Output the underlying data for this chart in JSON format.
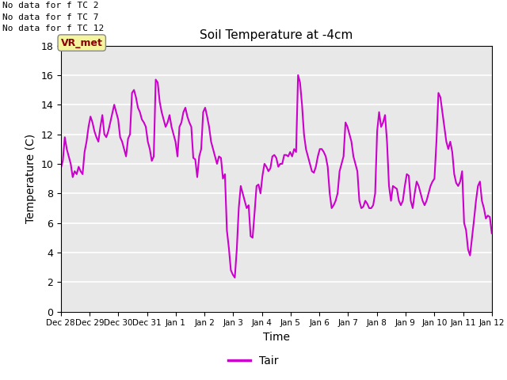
{
  "title": "Soil Temperature at -4cm",
  "xlabel": "Time",
  "ylabel": "Temperature (C)",
  "ylim": [
    0,
    18
  ],
  "line_color": "#cc00cc",
  "line_width": 1.5,
  "background_color": "#e8e8e8",
  "annotations": [
    "No data for f TC 2",
    "No data for f TC 7",
    "No data for f TC 12"
  ],
  "vr_met_label": "VR_met",
  "legend_label": "Tair",
  "tick_labels": [
    "Dec 28",
    "Dec 29",
    "Dec 30",
    "Dec 31",
    "Jan 1",
    "Jan 2",
    "Jan 3",
    "Jan 4",
    "Jan 5",
    "Jan 6",
    "Jan 7",
    "Jan 8",
    "Jan 9",
    "Jan 10",
    "Jan 11",
    "Jan 12"
  ],
  "tick_positions": [
    0,
    1,
    2,
    3,
    4,
    5,
    6,
    7,
    8,
    9,
    10,
    11,
    12,
    13,
    14,
    15
  ],
  "y_values": [
    9.7,
    10.2,
    11.8,
    11.0,
    10.5,
    10.0,
    9.1,
    9.5,
    9.3,
    9.8,
    9.5,
    9.3,
    10.8,
    11.5,
    12.5,
    13.2,
    12.8,
    12.2,
    11.8,
    11.5,
    12.5,
    13.3,
    12.0,
    11.8,
    12.2,
    12.8,
    13.4,
    14.0,
    13.5,
    13.0,
    11.8,
    11.5,
    11.0,
    10.5,
    11.7,
    12.0,
    14.8,
    15.0,
    14.5,
    13.8,
    13.5,
    13.0,
    12.8,
    12.5,
    11.5,
    11.0,
    10.2,
    10.5,
    15.7,
    15.5,
    14.2,
    13.5,
    13.0,
    12.5,
    12.8,
    13.3,
    12.5,
    12.0,
    11.5,
    10.5,
    12.5,
    12.8,
    13.5,
    13.8,
    13.2,
    12.8,
    12.5,
    10.4,
    10.3,
    9.1,
    10.5,
    11.0,
    13.5,
    13.8,
    13.2,
    12.5,
    11.5,
    11.0,
    10.5,
    10.0,
    10.5,
    10.4,
    9.0,
    9.3,
    5.5,
    4.3,
    2.8,
    2.5,
    2.3,
    4.2,
    7.0,
    8.5,
    8.0,
    7.5,
    7.0,
    7.2,
    5.1,
    5.0,
    6.7,
    8.5,
    8.6,
    8.0,
    9.2,
    10.0,
    9.8,
    9.5,
    9.7,
    10.5,
    10.6,
    10.4,
    9.8,
    10.0,
    10.0,
    10.6,
    10.6,
    10.5,
    10.8,
    10.5,
    11.0,
    10.8,
    16.0,
    15.5,
    14.0,
    12.0,
    11.0,
    10.5,
    10.0,
    9.5,
    9.4,
    9.8,
    10.5,
    11.0,
    11.0,
    10.8,
    10.5,
    9.8,
    8.0,
    7.0,
    7.2,
    7.5,
    8.0,
    9.5,
    10.0,
    10.5,
    12.8,
    12.5,
    12.0,
    11.5,
    10.5,
    10.0,
    9.5,
    7.5,
    7.0,
    7.1,
    7.5,
    7.3,
    7.0,
    7.0,
    7.2,
    8.0,
    12.2,
    13.5,
    12.5,
    12.8,
    13.3,
    11.5,
    8.5,
    7.5,
    8.5,
    8.4,
    8.3,
    7.5,
    7.2,
    7.5,
    8.5,
    9.3,
    9.2,
    7.5,
    7.0,
    8.0,
    8.8,
    8.5,
    8.0,
    7.5,
    7.2,
    7.5,
    8.0,
    8.5,
    8.8,
    9.0,
    11.5,
    14.8,
    14.5,
    13.5,
    12.5,
    11.5,
    11.0,
    11.5,
    10.8,
    9.3,
    8.7,
    8.5,
    8.8,
    9.5,
    6.0,
    5.5,
    4.2,
    3.8,
    5.0,
    6.2,
    7.5,
    8.5,
    8.8,
    7.5,
    7.0,
    6.3,
    6.5,
    6.4,
    5.3
  ]
}
